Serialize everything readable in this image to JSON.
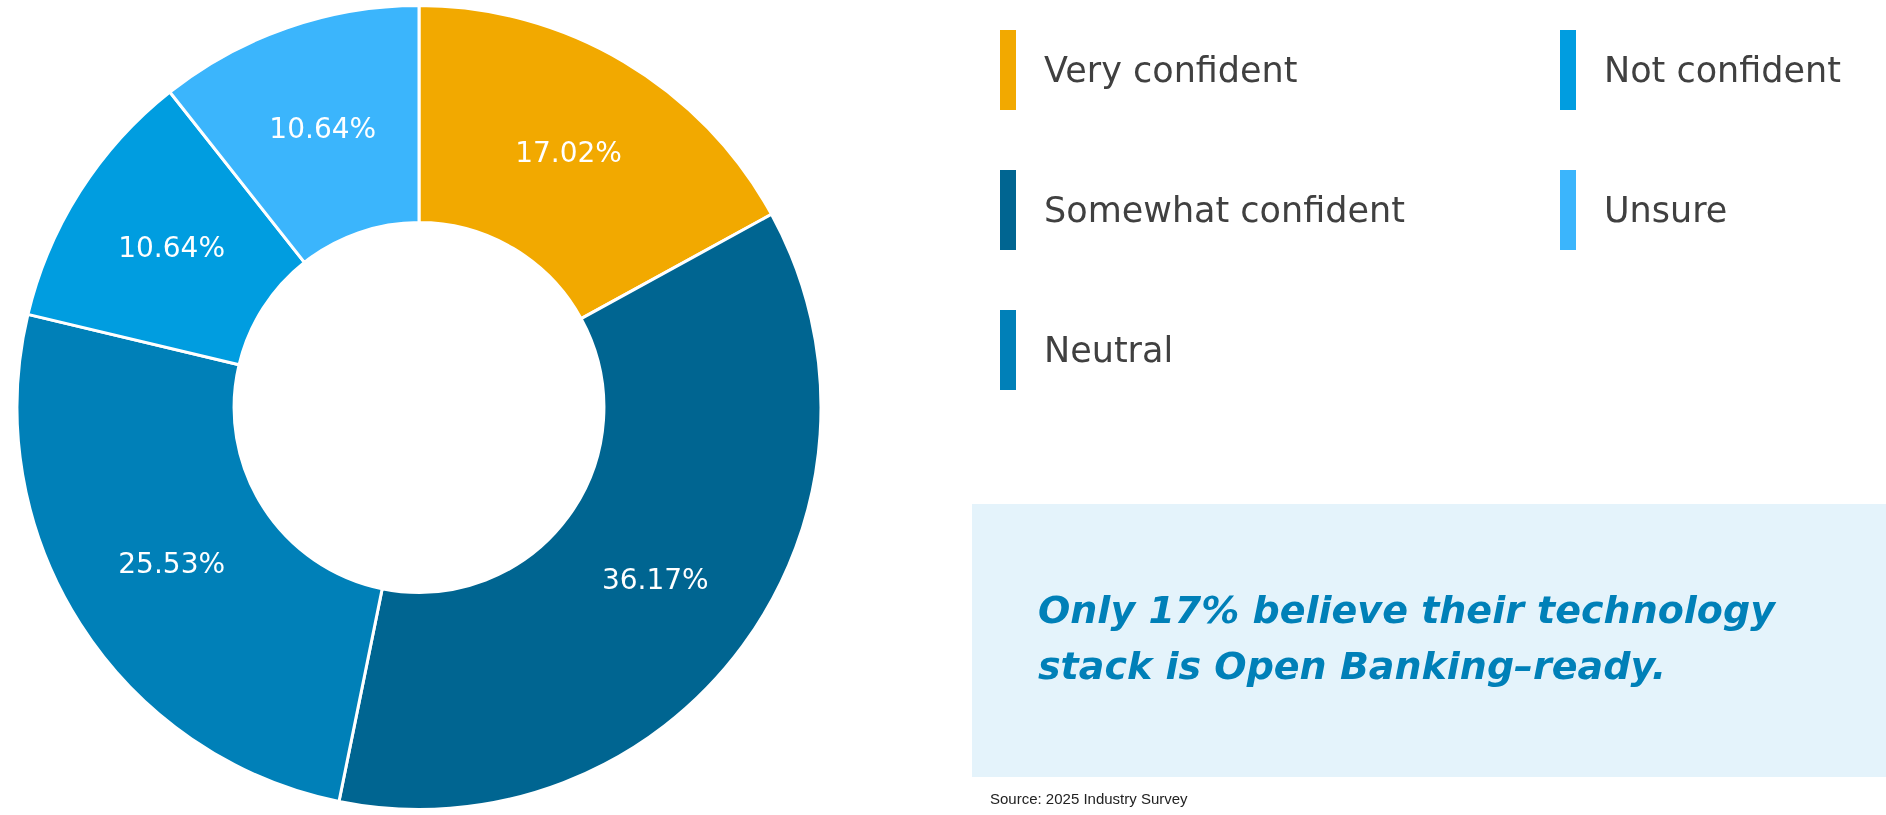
{
  "chart_data": {
    "type": "donut",
    "categories": [
      "Very confident",
      "Somewhat confident",
      "Neutral",
      "Not confident",
      "Unsure"
    ],
    "values": [
      17.02,
      36.17,
      25.53,
      10.64,
      10.64
    ],
    "colors": [
      "#f2a900",
      "#006591",
      "#0080b8",
      "#009de0",
      "#3bb5fc"
    ],
    "value_labels": [
      "17.02%",
      "36.17%",
      "25.53%",
      "10.64%",
      "10.64%"
    ],
    "legend": "right",
    "annotations": [
      "Only 17% believe their technology stack is Open Banking–ready.",
      "Source: 2025 Industry Survey"
    ]
  }
}
